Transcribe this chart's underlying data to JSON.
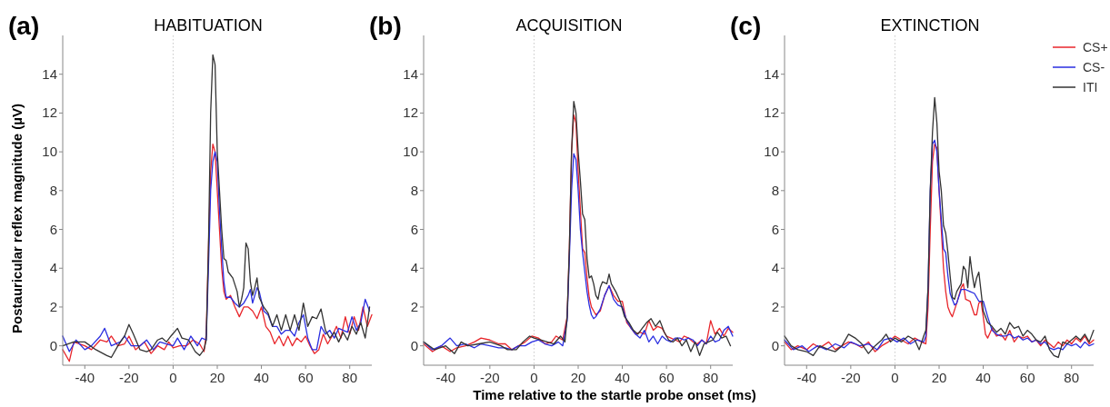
{
  "chart_data": [
    {
      "type": "line",
      "title": "HABITUATION",
      "annotations": [
        "(a)"
      ],
      "ylabel": "Postauricular reflex magnitude (µV)",
      "xlim": [
        -50,
        90
      ],
      "ylim": [
        -1,
        16
      ],
      "xticks": [
        -40,
        -20,
        0,
        20,
        40,
        60,
        80
      ],
      "yticks": [
        0,
        2,
        4,
        6,
        8,
        10,
        12,
        14
      ],
      "legend": false,
      "grid": false,
      "ref_lines": [
        {
          "axis": "x",
          "value": 0,
          "color": "#c8c8c8",
          "line_style": "dotted"
        }
      ],
      "series": [
        {
          "color": "#e8262b",
          "x": [
            -50,
            -47,
            -45,
            -40,
            -37,
            -33,
            -30,
            -28,
            -25,
            -22,
            -20,
            -17,
            -13,
            -10,
            -7,
            -4,
            -2,
            0,
            3,
            6,
            9,
            12,
            14,
            15,
            16,
            17,
            18,
            19,
            20,
            21,
            22,
            23,
            24,
            26,
            28,
            30,
            32,
            34,
            36,
            38,
            40,
            42,
            44,
            46,
            48,
            50,
            52,
            54,
            56,
            58,
            60,
            62,
            64,
            66,
            68,
            70,
            72,
            74,
            76,
            78,
            80,
            82,
            84,
            86,
            88,
            90
          ],
          "values": [
            -0.2,
            -0.8,
            0.2,
            0,
            -0.2,
            0.3,
            0.2,
            0.5,
            0,
            0.1,
            0.5,
            -0.2,
            0.2,
            -0.4,
            0,
            -0.2,
            0.2,
            -0.1,
            0,
            0,
            0.3,
            0.1,
            -0.3,
            0.6,
            5,
            9,
            10.4,
            10,
            8,
            6,
            4,
            2.8,
            2.4,
            2.6,
            2,
            1.5,
            2,
            2,
            1.8,
            1.4,
            2,
            1,
            0.7,
            0.1,
            0.5,
            0,
            0.5,
            0,
            0.4,
            0.2,
            0.5,
            0,
            -0.4,
            -0.2,
            0.6,
            0.1,
            0.5,
            1,
            0.4,
            1.5,
            0.6,
            1.5,
            0.8,
            2,
            1,
            1.6
          ]
        },
        {
          "color": "#2a2ee0",
          "x": [
            -50,
            -47,
            -44,
            -40,
            -37,
            -33,
            -31,
            -28,
            -24,
            -22,
            -19,
            -15,
            -12,
            -9,
            -6,
            -3,
            0,
            2,
            5,
            8,
            11,
            13,
            15,
            16,
            17,
            18,
            19,
            20,
            21,
            22,
            23,
            24,
            26,
            28,
            30,
            32,
            34,
            35,
            36,
            38,
            39,
            41,
            43,
            45,
            47,
            49,
            51,
            53,
            55,
            57,
            59,
            61,
            63,
            65,
            67,
            69,
            71,
            73,
            75,
            77,
            79,
            81,
            83,
            85,
            87,
            89
          ],
          "values": [
            0.5,
            -0.3,
            0.3,
            -0.2,
            0,
            0.5,
            0.9,
            0,
            0.2,
            0.5,
            0,
            0,
            0.3,
            -0.2,
            0.2,
            0.1,
            0,
            0.4,
            -0.2,
            0.5,
            0,
            0.4,
            0.3,
            4,
            8,
            9.5,
            10,
            9.5,
            7,
            5,
            3.3,
            2.5,
            2.5,
            2.2,
            2,
            2.2,
            2.6,
            2.9,
            2.2,
            3,
            2.8,
            1.8,
            1.6,
            1,
            1,
            0.6,
            0.8,
            0.8,
            0.5,
            1.2,
            1.6,
            0.4,
            -0.2,
            -0.2,
            1,
            0.6,
            0.8,
            0.4,
            0.9,
            0.8,
            0.7,
            1.5,
            0.8,
            1.2,
            2.4,
            1.8
          ]
        },
        {
          "color": "#333333",
          "x": [
            -50,
            -45,
            -40,
            -35,
            -30,
            -28,
            -25,
            -22,
            -20,
            -18,
            -15,
            -12,
            -10,
            -7,
            -5,
            -3,
            -1,
            2,
            4,
            7,
            10,
            12,
            14,
            15,
            16,
            17,
            18,
            19,
            20,
            21,
            22,
            23,
            24,
            25,
            27,
            29,
            30,
            31,
            32,
            33,
            34,
            35,
            36,
            37,
            38,
            39,
            41,
            43,
            45,
            47,
            49,
            51,
            53,
            55,
            57,
            59,
            61,
            63,
            65,
            67,
            69,
            71,
            73,
            75,
            77,
            79,
            81,
            83,
            85,
            87,
            89
          ],
          "values": [
            0,
            0.2,
            0.2,
            -0.2,
            -0.5,
            -0.6,
            0,
            0.5,
            1.1,
            0.6,
            -0.2,
            -0.3,
            -0.2,
            0.3,
            0.4,
            0.2,
            0.5,
            0.9,
            0.4,
            0.3,
            -0.3,
            -0.5,
            -0.2,
            0.3,
            5,
            12,
            15,
            14.5,
            10,
            8,
            6,
            4.5,
            4.4,
            3.8,
            3.5,
            2.8,
            2,
            2.4,
            3,
            5.3,
            5,
            3.3,
            2.6,
            3,
            3.5,
            2.5,
            2,
            1.7,
            1,
            1.6,
            0.8,
            1.6,
            0.8,
            1.6,
            0.8,
            2.2,
            1,
            1.5,
            1.4,
            1.9,
            0.8,
            0.4,
            0.7,
            0.2,
            0.7,
            0.3,
            1,
            0.6,
            1.2,
            0.4,
            2
          ]
        }
      ]
    },
    {
      "type": "line",
      "title": "ACQUISITION",
      "annotations": [
        "(b)"
      ],
      "xlabel": "Time relative to the startle probe onset (ms)",
      "xlim": [
        -50,
        90
      ],
      "ylim": [
        -1,
        16
      ],
      "xticks": [
        -40,
        -20,
        0,
        20,
        40,
        60,
        80
      ],
      "yticks": [
        0,
        2,
        4,
        6,
        8,
        10,
        12,
        14
      ],
      "legend": false,
      "grid": false,
      "ref_lines": [
        {
          "axis": "x",
          "value": 0,
          "color": "#c8c8c8",
          "line_style": "dotted"
        }
      ],
      "series": [
        {
          "color": "#e8262b",
          "x": [
            -50,
            -46,
            -42,
            -38,
            -35,
            -31,
            -27,
            -24,
            -20,
            -16,
            -13,
            -10,
            -7,
            -4,
            -1,
            2,
            5,
            8,
            10,
            13,
            15,
            16,
            17,
            18,
            19,
            20,
            21,
            22,
            23,
            24,
            25,
            26,
            27,
            28,
            30,
            32,
            34,
            36,
            38,
            40,
            42,
            44,
            46,
            48,
            50,
            52,
            54,
            56,
            58,
            60,
            62,
            64,
            66,
            68,
            70,
            72,
            74,
            76,
            78,
            80,
            82,
            84,
            86,
            88,
            90
          ],
          "values": [
            0.1,
            -0.3,
            0,
            -0.3,
            -0.1,
            0,
            0.2,
            0.4,
            0.3,
            0.1,
            0.1,
            -0.2,
            0,
            0.2,
            0.5,
            0.4,
            0.1,
            0.2,
            0.5,
            0.3,
            1.5,
            5,
            10,
            11.9,
            11.5,
            9,
            7,
            5,
            4.8,
            3.5,
            2.5,
            2,
            1.8,
            1.6,
            1.8,
            2.6,
            3.1,
            2.6,
            2.3,
            2.3,
            1.2,
            0.9,
            0.6,
            0.7,
            0.6,
            1.3,
            0.8,
            1,
            0.9,
            0.5,
            0.4,
            0.3,
            0.2,
            0.5,
            0.4,
            0.2,
            0.1,
            0.3,
            0.1,
            1.3,
            0.6,
            0.9,
            0.5,
            0.9,
            0.7
          ]
        },
        {
          "color": "#2a2ee0",
          "x": [
            -50,
            -46,
            -42,
            -38,
            -35,
            -31,
            -27,
            -24,
            -20,
            -16,
            -13,
            -10,
            -7,
            -4,
            -1,
            2,
            5,
            8,
            11,
            13,
            15,
            16,
            17,
            18,
            19,
            20,
            21,
            22,
            23,
            24,
            25,
            26,
            27,
            28,
            30,
            32,
            34,
            36,
            38,
            40,
            42,
            44,
            46,
            48,
            50,
            52,
            54,
            56,
            58,
            60,
            62,
            64,
            66,
            68,
            70,
            72,
            74,
            76,
            78,
            80,
            82,
            84,
            86,
            88,
            90
          ],
          "values": [
            0.2,
            -0.2,
            0,
            0.4,
            0,
            0.1,
            -0.1,
            0.1,
            0,
            -0.1,
            -0.1,
            -0.2,
            0,
            0,
            0.2,
            0.3,
            0.1,
            0,
            0.2,
            0,
            1.3,
            4.5,
            8,
            9.9,
            9.6,
            8,
            6,
            4.8,
            3.8,
            2.8,
            2.1,
            1.6,
            1.4,
            1.5,
            1.9,
            2.6,
            3.1,
            2.4,
            2.1,
            2,
            1.3,
            0.9,
            0.6,
            0.4,
            0.8,
            0.2,
            0.5,
            0.1,
            0.5,
            0.3,
            0.2,
            0.4,
            0.4,
            0.3,
            0.4,
            0.3,
            0,
            0.3,
            0.1,
            0.5,
            0.2,
            0.3,
            0.8,
            1,
            0.5
          ]
        },
        {
          "color": "#333333",
          "x": [
            -50,
            -45,
            -40,
            -36,
            -33,
            -30,
            -25,
            -20,
            -15,
            -12,
            -8,
            -5,
            -2,
            0,
            3,
            6,
            9,
            12,
            14,
            15,
            16,
            17,
            18,
            19,
            20,
            21,
            22,
            23,
            24,
            25,
            26,
            27,
            28,
            29,
            30,
            31,
            33,
            34,
            35,
            37,
            39,
            41,
            43,
            45,
            47,
            49,
            51,
            53,
            55,
            57,
            59,
            61,
            63,
            65,
            67,
            69,
            71,
            73,
            75,
            77,
            79,
            81,
            83,
            85,
            87,
            89
          ],
          "values": [
            0.2,
            -0.2,
            0,
            -0.4,
            0.2,
            0,
            0.1,
            0.2,
            0,
            -0.2,
            -0.2,
            0.2,
            0.5,
            0.4,
            0.3,
            0.2,
            0.1,
            0.5,
            0.2,
            1.5,
            5,
            10,
            12.6,
            12,
            10,
            8.5,
            6.8,
            6.5,
            4.5,
            3.5,
            3.6,
            3.2,
            2.6,
            2.4,
            3,
            3.3,
            3.2,
            3.7,
            3.2,
            2.8,
            2.3,
            1.5,
            1.2,
            0.8,
            0.6,
            0.9,
            1.2,
            1.4,
            1,
            1.3,
            0.7,
            0.3,
            0.2,
            0.4,
            0,
            0.3,
            -0.3,
            0.2,
            -0.5,
            0.1,
            0.2,
            0.3,
            0.7,
            0.4,
            0.5,
            0
          ]
        }
      ]
    },
    {
      "type": "line",
      "title": "EXTINCTION",
      "annotations": [
        "(c)"
      ],
      "xlim": [
        -50,
        90
      ],
      "ylim": [
        -1,
        16
      ],
      "xticks": [
        -40,
        -20,
        0,
        20,
        40,
        60,
        80
      ],
      "yticks": [
        0,
        2,
        4,
        6,
        8,
        10,
        12,
        14
      ],
      "legend": "top right",
      "grid": false,
      "ref_lines": [
        {
          "axis": "x",
          "value": 0,
          "color": "#c8c8c8",
          "line_style": "dotted"
        }
      ],
      "series": [
        {
          "name": "CS+",
          "color": "#e8262b",
          "x": [
            -50,
            -47,
            -44,
            -40,
            -37,
            -34,
            -30,
            -27,
            -24,
            -21,
            -18,
            -15,
            -12,
            -9,
            -6,
            -3,
            0,
            3,
            6,
            9,
            12,
            14,
            15,
            16,
            17,
            18,
            19,
            20,
            21,
            22,
            23,
            24,
            25,
            26,
            28,
            30,
            31,
            32,
            34,
            36,
            37,
            38,
            39,
            40,
            41,
            42,
            44,
            46,
            48,
            50,
            52,
            54,
            56,
            58,
            60,
            62,
            64,
            66,
            68,
            70,
            72,
            74,
            76,
            78,
            80,
            82,
            84,
            86,
            88,
            90
          ],
          "values": [
            0.2,
            -0.2,
            0,
            -0.2,
            0.1,
            -0.1,
            0.2,
            -0.2,
            0,
            0.2,
            0.1,
            -0.1,
            0.2,
            -0.3,
            0,
            0.2,
            0.5,
            0.3,
            0.1,
            0.4,
            0.2,
            0.1,
            2,
            6,
            9.5,
            10.4,
            10.2,
            8,
            6,
            4,
            2.8,
            2,
            1.7,
            1.5,
            2.2,
            3,
            3.2,
            2.4,
            2.3,
            1.6,
            1.6,
            2.2,
            2.3,
            1.5,
            0.6,
            0.4,
            0.9,
            0.5,
            0.6,
            0.3,
            0.8,
            0.2,
            0.5,
            0.4,
            0.5,
            0.2,
            0.3,
            0,
            0.3,
            0.1,
            -0.1,
            0.2,
            0,
            0.3,
            0.1,
            0.4,
            0.2,
            0.5,
            0.1,
            0.3
          ]
        },
        {
          "name": "CS-",
          "color": "#2a2ee0",
          "x": [
            -50,
            -46,
            -42,
            -39,
            -35,
            -31,
            -27,
            -23,
            -20,
            -16,
            -12,
            -8,
            -5,
            -2,
            1,
            4,
            7,
            10,
            13,
            14,
            15,
            16,
            17,
            18,
            19,
            20,
            21,
            22,
            23,
            24,
            25,
            26,
            27,
            28,
            30,
            32,
            34,
            36,
            38,
            40,
            42,
            44,
            46,
            48,
            50,
            52,
            54,
            56,
            58,
            60,
            62,
            64,
            66,
            68,
            70,
            72,
            74,
            76,
            78,
            80,
            82,
            84,
            86,
            88,
            90
          ],
          "values": [
            0.3,
            -0.2,
            0,
            -0.3,
            0,
            -0.2,
            0.1,
            -0.1,
            0.2,
            0,
            0.1,
            -0.2,
            0.3,
            0.4,
            0.2,
            0.4,
            0.1,
            0.3,
            0.2,
            0.5,
            3,
            8,
            10.4,
            10.6,
            10,
            8,
            6.5,
            5,
            4.8,
            3.6,
            2.7,
            2.4,
            2.1,
            2.2,
            2.9,
            2.9,
            2.8,
            2.7,
            2.3,
            2.3,
            1.5,
            0.8,
            0.6,
            0.5,
            0.5,
            0.6,
            0.4,
            0.5,
            0.3,
            0.4,
            0.2,
            0.3,
            0.1,
            0.2,
            -0.1,
            -0.2,
            -0.1,
            -0.2,
            0.1,
            0,
            0.1,
            -0.1,
            0.2,
            0,
            0.1
          ]
        },
        {
          "name": "ITI",
          "color": "#333333",
          "x": [
            -50,
            -47,
            -44,
            -40,
            -37,
            -34,
            -30,
            -27,
            -24,
            -21,
            -18,
            -15,
            -12,
            -9,
            -6,
            -4,
            -2,
            0,
            3,
            6,
            9,
            11,
            13,
            14,
            15,
            16,
            17,
            18,
            19,
            20,
            21,
            22,
            23,
            24,
            25,
            26,
            27,
            28,
            29,
            30,
            31,
            32,
            33,
            34,
            35,
            36,
            37,
            38,
            39,
            40,
            42,
            44,
            46,
            48,
            50,
            52,
            54,
            56,
            58,
            60,
            62,
            64,
            66,
            68,
            70,
            72,
            74,
            76,
            78,
            80,
            82,
            84,
            86,
            88,
            90
          ],
          "values": [
            0.5,
            0,
            -0.2,
            -0.3,
            -0.5,
            0,
            -0.2,
            -0.3,
            0,
            0.6,
            0.4,
            0.1,
            -0.4,
            0,
            0.3,
            0.6,
            0.2,
            0.4,
            0.2,
            0.5,
            0.3,
            -0.2,
            0.5,
            0.8,
            3,
            8,
            11,
            12.8,
            11.5,
            9,
            8,
            6.2,
            5.8,
            4.8,
            3.6,
            2.5,
            2.4,
            2.8,
            3,
            3.2,
            4.1,
            3.9,
            3,
            4.6,
            3.7,
            3,
            3.5,
            3.8,
            2.8,
            1.8,
            1.2,
            1,
            0.7,
            0.9,
            0.6,
            1.2,
            0.9,
            1,
            0.5,
            0.8,
            0.6,
            0.3,
            0.2,
            0.5,
            -0.2,
            -0.5,
            -0.6,
            0.2,
            0.1,
            0.3,
            0.5,
            0.3,
            0.6,
            0.2,
            0.8
          ]
        }
      ]
    }
  ]
}
